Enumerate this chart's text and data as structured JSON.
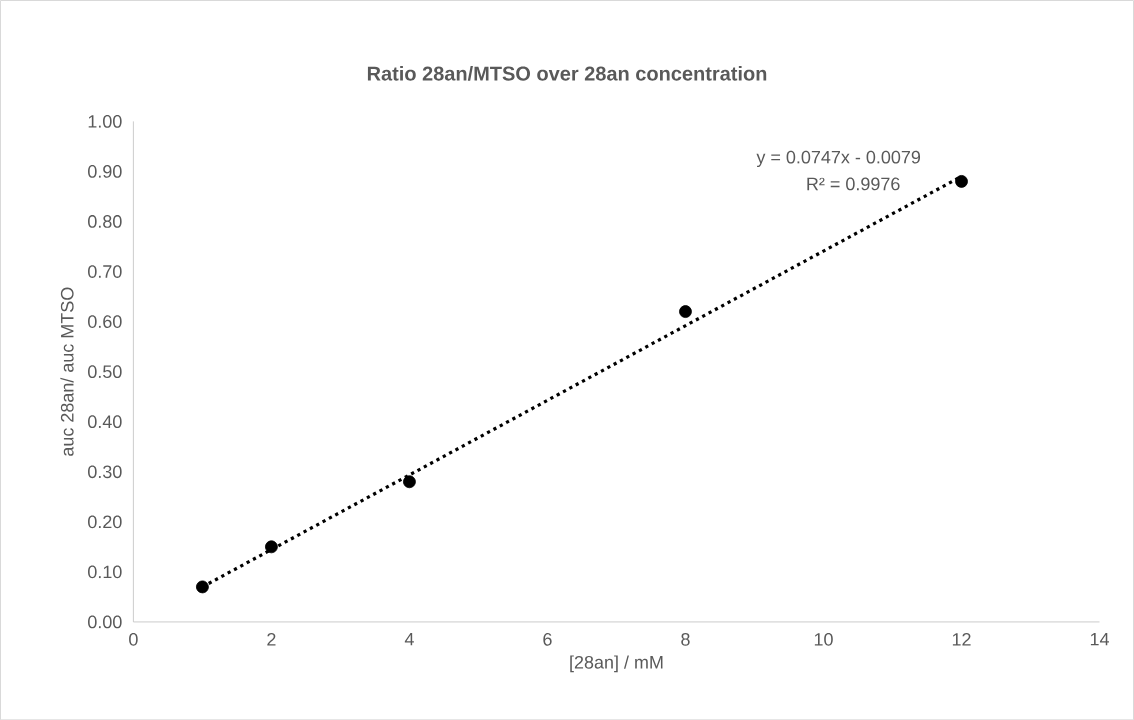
{
  "chart_data": {
    "type": "scatter",
    "title": "Ratio 28an/MTSO over 28an concentration",
    "xlabel": "[28an] / mM",
    "ylabel": "auc 28an/ auc MTSO",
    "annotations": [
      "y = 0.0747x - 0.0079",
      "R² = 0.9976"
    ],
    "series": [
      {
        "color": "#000000",
        "marker": "circle",
        "x": [
          1,
          2,
          4,
          8,
          12
        ],
        "values": [
          0.07,
          0.15,
          0.28,
          0.62,
          0.88
        ]
      },
      {
        "type": "line",
        "color": "#000000",
        "marker": "none",
        "line_style": "dotted",
        "x": [
          1,
          12
        ],
        "values": [
          0.07,
          0.89
        ]
      }
    ],
    "xlim": [
      0,
      14
    ],
    "xticks": [
      0,
      2,
      4,
      6,
      8,
      10,
      12,
      14
    ],
    "ylim": [
      0,
      1
    ],
    "yticks": [
      {
        "value": 0,
        "label": "0.00"
      },
      {
        "value": 0.1,
        "label": "0.10"
      },
      {
        "value": 0.2,
        "label": "0.20"
      },
      {
        "value": 0.3,
        "label": "0.30"
      },
      {
        "value": 0.4,
        "label": "0.40"
      },
      {
        "value": 0.5,
        "label": "0.50"
      },
      {
        "value": 0.6,
        "label": "0.60"
      },
      {
        "value": 0.7,
        "label": "0.70"
      },
      {
        "value": 0.8,
        "label": "0.80"
      },
      {
        "value": 0.9,
        "label": "0.90"
      },
      {
        "value": 1,
        "label": "1.00"
      }
    ]
  }
}
